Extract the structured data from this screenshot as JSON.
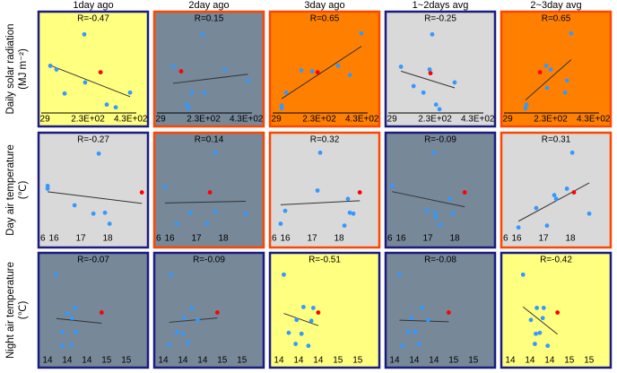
{
  "column_headers": [
    "1day ago",
    "2day ago",
    "3day ago",
    "1~2days avg",
    "2~3day avg"
  ],
  "row_labels": [
    [
      "Daily solar radiation",
      "(MJ m⁻²)"
    ],
    [
      "Day air temperature",
      "(℃)"
    ],
    [
      "Night air temperature",
      "(℃)"
    ]
  ],
  "chart_data": [
    {
      "type": "scatter",
      "title": "R=-0.47",
      "background": "#ffff80",
      "border": "#1c1c80",
      "xlim": [
        -5,
        515
      ],
      "ylim": [
        0,
        100
      ],
      "xticks": [
        29,
        {
          "value": 230,
          "label": "2.3E+02"
        },
        {
          "value": 430,
          "label": "4.3E+02"
        }
      ],
      "x_axis_line": true,
      "trendline": true,
      "series": [
        {
          "color": "#3399ff",
          "x": [
            213,
            54,
            83,
            121,
            217,
            427,
            318,
            360
          ],
          "values": [
            88,
            54,
            50,
            24,
            36,
            25,
            12,
            9
          ]
        },
        {
          "color": "#ff0000",
          "x": [
            289
          ],
          "values": [
            47
          ]
        }
      ]
    },
    {
      "type": "scatter",
      "title": "R=0.15",
      "background": "#778899",
      "border": "#ff4500",
      "xlim": [
        -5,
        515
      ],
      "ylim": [
        0,
        100
      ],
      "xticks": [
        29,
        {
          "value": 230,
          "label": "2.3E+02"
        },
        {
          "value": 430,
          "label": "4.3E+02"
        }
      ],
      "x_axis_line": true,
      "trendline": true,
      "series": [
        {
          "color": "#3399ff",
          "x": [
            226,
            87,
            328,
            437,
            175,
            234,
            151,
            160
          ],
          "values": [
            88,
            53,
            50,
            38,
            25,
            25,
            12,
            8
          ]
        },
        {
          "color": "#ff0000",
          "x": [
            125
          ],
          "values": [
            48
          ]
        }
      ]
    },
    {
      "type": "scatter",
      "title": "R=0.65",
      "background": "#ff8000",
      "border": "#ff4500",
      "xlim": [
        -5,
        515
      ],
      "ylim": [
        0,
        100
      ],
      "xticks": [
        29,
        {
          "value": 230,
          "label": "2.3E+02"
        },
        {
          "value": 430,
          "label": "4.3E+02"
        }
      ],
      "x_axis_line": true,
      "trendline": true,
      "series": [
        {
          "color": "#3399ff",
          "x": [
            427,
            318,
            146,
            373,
            75,
            54,
            54,
            197
          ],
          "values": [
            89,
            54,
            49,
            44,
            25,
            11,
            8,
            48
          ]
        },
        {
          "color": "#ff0000",
          "x": [
            222
          ],
          "values": [
            47
          ]
        }
      ]
    },
    {
      "type": "scatter",
      "title": "R=-0.25",
      "background": "#d9d9d9",
      "border": "#1c1c80",
      "xlim": [
        -5,
        515
      ],
      "ylim": [
        0,
        100
      ],
      "xticks": [
        29,
        {
          "value": 230,
          "label": "2.3E+02"
        },
        {
          "value": 430,
          "label": "4.3E+02"
        }
      ],
      "x_axis_line": true,
      "trendline": true,
      "series": [
        {
          "color": "#3399ff",
          "x": [
            217,
            71,
            205,
            322,
            130,
            176,
            235,
            251
          ],
          "values": [
            88,
            53,
            50,
            36,
            32,
            25,
            12,
            7
          ]
        },
        {
          "color": "#ff0000",
          "x": [
            209
          ],
          "values": [
            46
          ]
        }
      ]
    },
    {
      "type": "scatter",
      "title": "R=0.65",
      "background": "#ff8000",
      "border": "#ff4500",
      "xlim": [
        -5,
        515
      ],
      "ylim": [
        0,
        100
      ],
      "xticks": [
        29,
        {
          "value": 230,
          "label": "2.3E+02"
        },
        {
          "value": 430,
          "label": "4.3E+02"
        }
      ],
      "x_axis_line": true,
      "trendline": true,
      "series": [
        {
          "color": "#3399ff",
          "x": [
            326,
            209,
            230,
            306,
            213,
            297,
            117,
            112
          ],
          "values": [
            89,
            54,
            50,
            38,
            30,
            25,
            12,
            8
          ]
        },
        {
          "color": "#ff0000",
          "x": [
            180
          ],
          "values": [
            47
          ]
        }
      ]
    },
    {
      "type": "scatter",
      "title": "R=-0.27",
      "background": "#d9d9d9",
      "border": "#1c1c80",
      "xlim": [
        15.4,
        19.53
      ],
      "ylim": [
        0,
        100
      ],
      "xticks": [
        {
          "value": 15.5,
          "label": "16"
        },
        16,
        17,
        18
      ],
      "x_axis_line": false,
      "trendline": true,
      "series": [
        {
          "color": "#3399ff",
          "x": [
            17.67,
            15.77,
            15.77,
            16.77,
            17.47,
            17.9,
            18.07
          ],
          "values": [
            90,
            55,
            52,
            34,
            25,
            26,
            14
          ]
        },
        {
          "color": "#ff0000",
          "x": [
            19.27
          ],
          "values": [
            48
          ]
        }
      ]
    },
    {
      "type": "scatter",
      "title": "R=0.14",
      "background": "#778899",
      "border": "#ff4500",
      "xlim": [
        15.4,
        19.53
      ],
      "ylim": [
        0,
        100
      ],
      "xticks": [
        {
          "value": 15.5,
          "label": "16"
        },
        16,
        17,
        18
      ],
      "x_axis_line": false,
      "trendline": true,
      "series": [
        {
          "color": "#3399ff",
          "x": [
            17.7,
            15.83,
            16.77,
            17.7,
            18.83,
            16.27,
            17.4
          ],
          "values": [
            91,
            54,
            26,
            27,
            25,
            14,
            14
          ]
        },
        {
          "color": "#ff0000",
          "x": [
            17.5
          ],
          "values": [
            48
          ]
        }
      ]
    },
    {
      "type": "scatter",
      "title": "R=0.32",
      "background": "#d9d9d9",
      "border": "#ff4500",
      "xlim": [
        15.4,
        19.53
      ],
      "ylim": [
        0,
        100
      ],
      "xticks": [
        {
          "value": 15.5,
          "label": "16"
        },
        16,
        17,
        18
      ],
      "x_axis_line": false,
      "trendline": true,
      "series": [
        {
          "color": "#3399ff",
          "x": [
            17.3,
            17.2,
            18.33,
            18.4,
            18.53,
            16.0,
            15.83,
            18.2
          ],
          "values": [
            91,
            50,
            41,
            26,
            25,
            28,
            14,
            12
          ]
        },
        {
          "color": "#ff0000",
          "x": [
            18.77
          ],
          "values": [
            48
          ]
        }
      ]
    },
    {
      "type": "scatter",
      "title": "R=-0.09",
      "background": "#778899",
      "border": "#1c1c80",
      "xlim": [
        15.4,
        19.53
      ],
      "ylim": [
        0,
        100
      ],
      "xticks": [
        {
          "value": 15.5,
          "label": "16"
        },
        16,
        17,
        18
      ],
      "x_axis_line": false,
      "trendline": true,
      "series": [
        {
          "color": "#3399ff",
          "x": [
            17.23,
            15.67,
            17.83,
            17.27,
            17.3,
            16.97,
            17.93,
            17.47
          ],
          "values": [
            91,
            55,
            41,
            26,
            21,
            28,
            25,
            13
          ]
        },
        {
          "color": "#ff0000",
          "x": [
            18.37
          ],
          "values": [
            48
          ]
        }
      ]
    },
    {
      "type": "scatter",
      "title": "R=0.31",
      "background": "#d9d9d9",
      "border": "#ff4500",
      "xlim": [
        15.4,
        19.53
      ],
      "ylim": [
        0,
        100
      ],
      "xticks": [
        {
          "value": 15.5,
          "label": "16"
        },
        16,
        17,
        18
      ],
      "x_axis_line": false,
      "trendline": true,
      "series": [
        {
          "color": "#3399ff",
          "x": [
            18.07,
            17.87,
            17.4,
            16.73,
            17.47,
            18.7,
            17.13,
            16.07
          ],
          "values": [
            91,
            52,
            45,
            31,
            41,
            25,
            12,
            10
          ]
        },
        {
          "color": "#ff0000",
          "x": [
            18.13
          ],
          "values": [
            48
          ]
        }
      ]
    },
    {
      "type": "scatter",
      "title": "R=-0.07",
      "background": "#778899",
      "border": "#1c1c80",
      "xlim": [
        13.9,
        15.03
      ],
      "ylim": [
        0,
        100
      ],
      "xticks": [
        14,
        {
          "value": 14.2,
          "label": "14"
        },
        {
          "value": 14.4,
          "label": "14"
        },
        {
          "value": 14.6,
          "label": "15"
        },
        {
          "value": 14.8,
          "label": "15"
        }
      ],
      "x_axis_line": false,
      "trendline": true,
      "series": [
        {
          "color": "#3399ff",
          "x": [
            14.09,
            14.28,
            14.2,
            14.25,
            14.15,
            14.24,
            14.15,
            14.29
          ],
          "values": [
            89,
            53,
            47,
            42,
            27,
            13,
            12,
            27
          ]
        },
        {
          "color": "#ff0000",
          "x": [
            14.55
          ],
          "values": [
            48
          ]
        }
      ]
    },
    {
      "type": "scatter",
      "title": "R=-0.09",
      "background": "#778899",
      "border": "#1c1c80",
      "xlim": [
        13.9,
        15.03
      ],
      "ylim": [
        0,
        100
      ],
      "xticks": [
        14,
        {
          "value": 14.2,
          "label": "14"
        },
        {
          "value": 14.4,
          "label": "14"
        },
        {
          "value": 14.6,
          "label": "15"
        },
        {
          "value": 14.8,
          "label": "15"
        }
      ],
      "x_axis_line": false,
      "trendline": true,
      "series": [
        {
          "color": "#3399ff",
          "x": [
            14.08,
            14.29,
            14.21,
            14.35,
            14.14,
            14.2,
            14.25,
            14.06
          ],
          "values": [
            89,
            53,
            42,
            40,
            27,
            25,
            15,
            13
          ]
        },
        {
          "color": "#ff0000",
          "x": [
            14.55
          ],
          "values": [
            48
          ]
        }
      ]
    },
    {
      "type": "scatter",
      "title": "R=-0.51",
      "background": "#ffff80",
      "border": "#1c1c80",
      "xlim": [
        13.9,
        15.03
      ],
      "ylim": [
        0,
        100
      ],
      "xticks": [
        14,
        {
          "value": 14.2,
          "label": "14"
        },
        {
          "value": 14.4,
          "label": "14"
        },
        {
          "value": 14.6,
          "label": "15"
        },
        {
          "value": 14.8,
          "label": "15"
        }
      ],
      "x_axis_line": false,
      "trendline": true,
      "series": [
        {
          "color": "#3399ff",
          "x": [
            14.05,
            14.25,
            14.35,
            14.33,
            14.18,
            14.1,
            14.23,
            14.3,
            14.17
          ],
          "values": [
            89,
            54,
            53,
            39,
            40,
            26,
            25,
            12,
            14
          ]
        },
        {
          "color": "#ff0000",
          "x": [
            14.4
          ],
          "values": [
            48
          ]
        }
      ]
    },
    {
      "type": "scatter",
      "title": "R=-0.08",
      "background": "#778899",
      "border": "#1c1c80",
      "xlim": [
        13.9,
        15.03
      ],
      "ylim": [
        0,
        100
      ],
      "xticks": [
        14,
        {
          "value": 14.2,
          "label": "14"
        },
        {
          "value": 14.4,
          "label": "14"
        },
        {
          "value": 14.6,
          "label": "15"
        },
        {
          "value": 14.8,
          "label": "15"
        }
      ],
      "x_axis_line": false,
      "trendline": true,
      "series": [
        {
          "color": "#3399ff",
          "x": [
            14.05,
            14.28,
            14.17,
            14.34,
            14.14,
            14.21,
            14.25,
            14.08
          ],
          "values": [
            89,
            53,
            42,
            40,
            27,
            27,
            14,
            12
          ]
        },
        {
          "color": "#ff0000",
          "x": [
            14.55
          ],
          "values": [
            48
          ]
        }
      ]
    },
    {
      "type": "scatter",
      "title": "R=-0.42",
      "background": "#ffff80",
      "border": "#1c1c80",
      "xlim": [
        13.9,
        15.03
      ],
      "ylim": [
        0,
        100
      ],
      "xticks": [
        14,
        {
          "value": 14.2,
          "label": "14"
        },
        {
          "value": 14.4,
          "label": "14"
        },
        {
          "value": 14.6,
          "label": "15"
        },
        {
          "value": 14.8,
          "label": "15"
        }
      ],
      "x_axis_line": false,
      "trendline": true,
      "series": [
        {
          "color": "#3399ff",
          "x": [
            14.13,
            14.27,
            14.34,
            14.33,
            14.21,
            14.26,
            14.3,
            14.38,
            14.25
          ],
          "values": [
            89,
            53,
            53,
            42,
            40,
            25,
            26,
            12,
            14
          ]
        },
        {
          "color": "#ff0000",
          "x": [
            14.48
          ],
          "values": [
            48
          ]
        }
      ]
    }
  ]
}
